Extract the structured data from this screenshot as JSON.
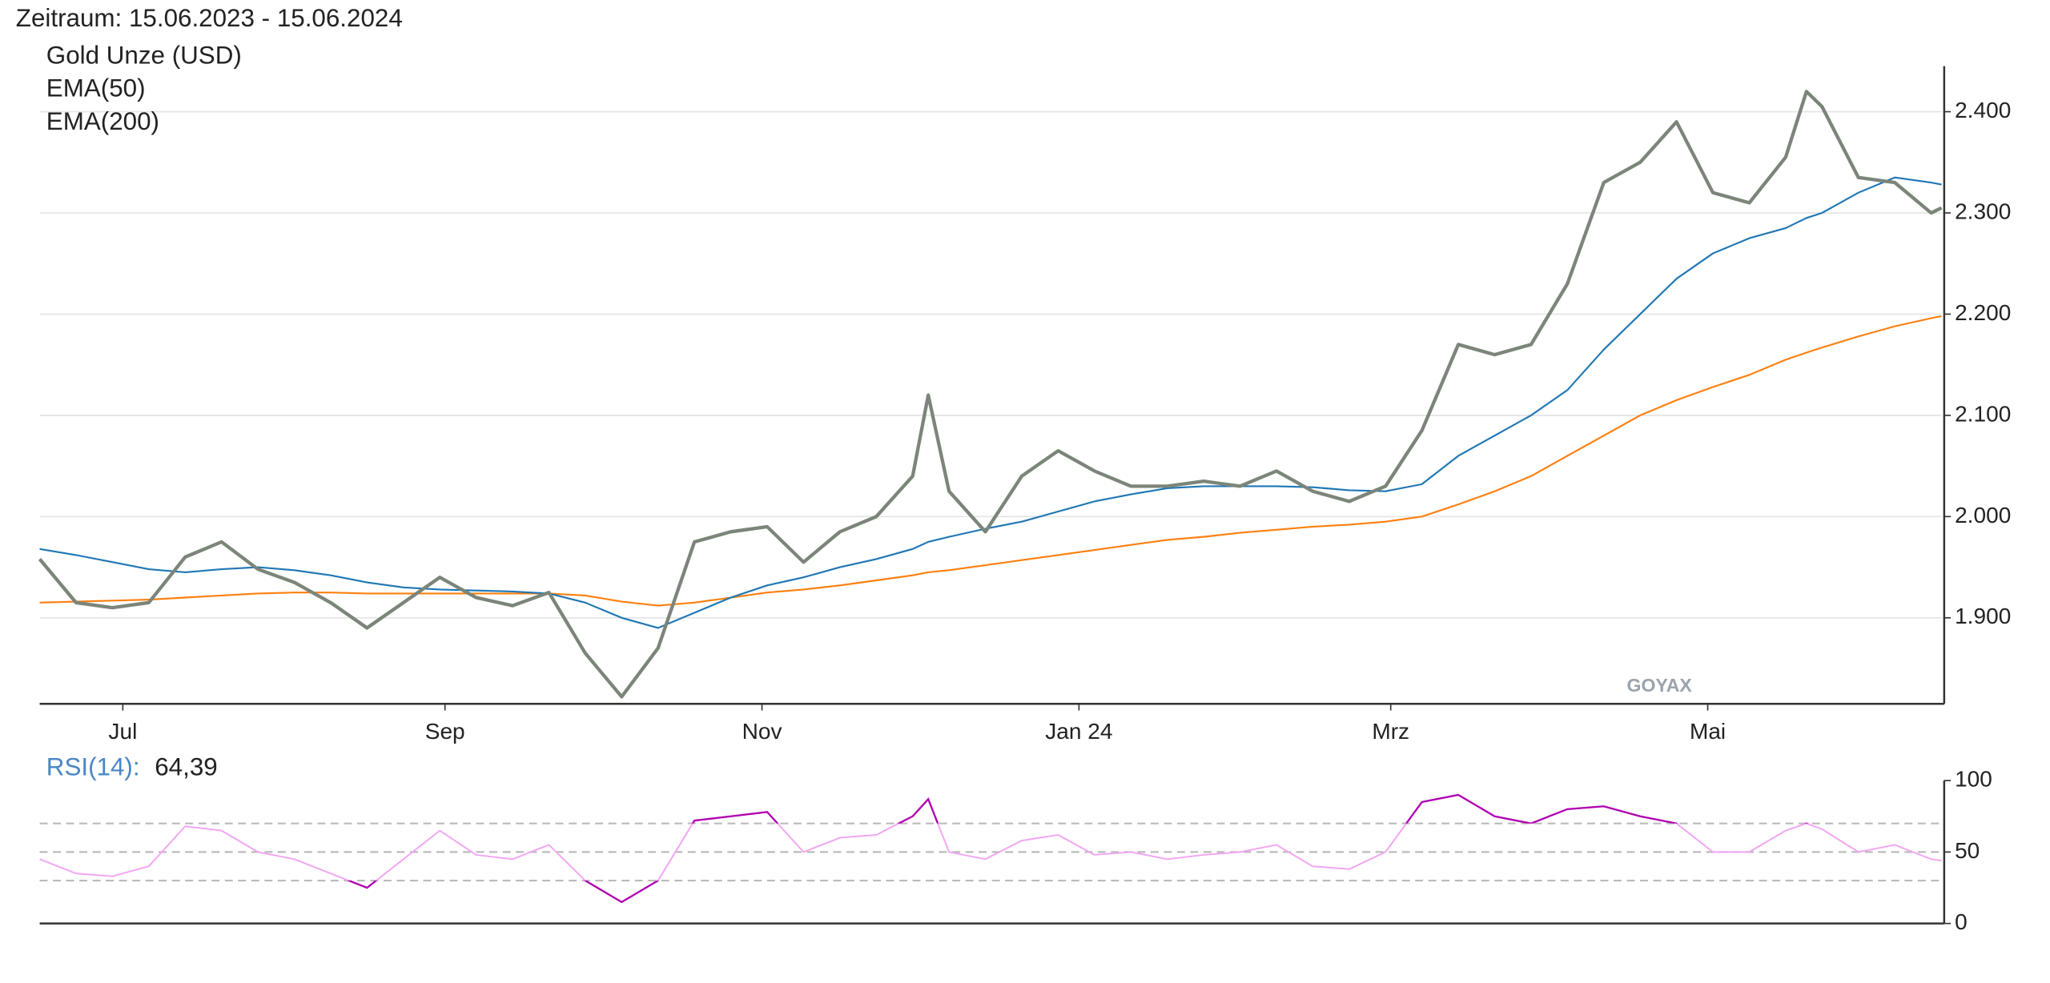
{
  "chart_data": [
    {
      "type": "line",
      "title": "Zeitraum: 15.06.2023 - 15.06.2024",
      "watermark": "GOYAX",
      "x": [
        0,
        7,
        14,
        21,
        28,
        35,
        42,
        49,
        56,
        63,
        70,
        77,
        84,
        91,
        98,
        105,
        112,
        119,
        126,
        133,
        140,
        147,
        154,
        161,
        168,
        171,
        175,
        182,
        189,
        196,
        203,
        210,
        217,
        224,
        231,
        238,
        245,
        252,
        259,
        266,
        273,
        280,
        287,
        294,
        301,
        308,
        315,
        322,
        329,
        336,
        340,
        343,
        350,
        357,
        364,
        366
      ],
      "xlim": [
        0,
        366
      ],
      "xticks": [
        {
          "value": 16,
          "label": "Jul"
        },
        {
          "value": 78,
          "label": "Sep"
        },
        {
          "value": 139,
          "label": "Nov"
        },
        {
          "value": 200,
          "label": "Jan 24"
        },
        {
          "value": 260,
          "label": "Mrz"
        },
        {
          "value": 321,
          "label": "Mai"
        }
      ],
      "ylim": [
        1815,
        2445
      ],
      "yticks": [
        {
          "value": 1900,
          "label": "1.900"
        },
        {
          "value": 2000,
          "label": "2.000"
        },
        {
          "value": 2100,
          "label": "2.100"
        },
        {
          "value": 2200,
          "label": "2.200"
        },
        {
          "value": 2300,
          "label": "2.300"
        },
        {
          "value": 2400,
          "label": "2.400"
        }
      ],
      "grid": true,
      "series": [
        {
          "name": "Gold Unze (USD)",
          "color": "#7b8579",
          "values": [
            1958,
            1915,
            1910,
            1915,
            1960,
            1975,
            1948,
            1935,
            1915,
            1890,
            1915,
            1940,
            1920,
            1912,
            1925,
            1865,
            1822,
            1870,
            1975,
            1985,
            1990,
            1955,
            1985,
            2000,
            2040,
            2120,
            2025,
            1985,
            2040,
            2065,
            2045,
            2030,
            2030,
            2035,
            2030,
            2045,
            2025,
            2015,
            2030,
            2085,
            2170,
            2160,
            2170,
            2230,
            2330,
            2350,
            2390,
            2320,
            2310,
            2355,
            2420,
            2405,
            2335,
            2330,
            2300,
            2305
          ]
        },
        {
          "name": "EMA(50)",
          "color": "#1f77b4",
          "values": [
            1968,
            1962,
            1955,
            1948,
            1945,
            1948,
            1950,
            1947,
            1942,
            1935,
            1930,
            1928,
            1927,
            1926,
            1924,
            1915,
            1900,
            1890,
            1905,
            1920,
            1932,
            1940,
            1950,
            1958,
            1968,
            1975,
            1980,
            1988,
            1995,
            2005,
            2015,
            2022,
            2028,
            2030,
            2030,
            2030,
            2029,
            2026,
            2025,
            2032,
            2060,
            2080,
            2100,
            2125,
            2165,
            2200,
            2235,
            2260,
            2275,
            2285,
            2295,
            2300,
            2320,
            2335,
            2330,
            2328
          ]
        },
        {
          "name": "EMA(200)",
          "color": "#ff7f0e",
          "values": [
            1915,
            1916,
            1917,
            1918,
            1920,
            1922,
            1924,
            1925,
            1925,
            1924,
            1924,
            1924,
            1924,
            1924,
            1924,
            1922,
            1916,
            1912,
            1915,
            1920,
            1925,
            1928,
            1932,
            1937,
            1942,
            1945,
            1947,
            1952,
            1957,
            1962,
            1967,
            1972,
            1977,
            1980,
            1984,
            1987,
            1990,
            1992,
            1995,
            2000,
            2012,
            2025,
            2040,
            2060,
            2080,
            2100,
            2115,
            2128,
            2140,
            2155,
            2162,
            2167,
            2178,
            2188,
            2196,
            2198
          ]
        }
      ]
    },
    {
      "type": "line",
      "label": "RSI(14):",
      "current": "64,39",
      "x": [
        0,
        7,
        14,
        21,
        28,
        35,
        42,
        49,
        56,
        63,
        70,
        77,
        84,
        91,
        98,
        105,
        112,
        119,
        126,
        133,
        140,
        147,
        154,
        161,
        168,
        171,
        175,
        182,
        189,
        196,
        203,
        210,
        217,
        224,
        231,
        238,
        245,
        252,
        259,
        266,
        273,
        280,
        287,
        294,
        301,
        308,
        315,
        322,
        329,
        336,
        340,
        343,
        350,
        357,
        364,
        366
      ],
      "xlim": [
        0,
        366
      ],
      "ylim": [
        0,
        100
      ],
      "yticks": [
        0,
        50,
        100
      ],
      "levels": [
        30,
        50,
        70
      ],
      "series": [
        {
          "name": "RSI(14)",
          "color": "#f2a6f2",
          "extreme_color": "#b000b0",
          "values": [
            45,
            35,
            33,
            40,
            68,
            65,
            50,
            45,
            35,
            25,
            45,
            65,
            48,
            45,
            55,
            30,
            15,
            30,
            72,
            75,
            78,
            50,
            60,
            62,
            75,
            87,
            50,
            45,
            58,
            62,
            48,
            50,
            45,
            48,
            50,
            55,
            40,
            38,
            50,
            85,
            90,
            75,
            70,
            80,
            82,
            75,
            70,
            50,
            50,
            65,
            70,
            66,
            50,
            55,
            45,
            44
          ]
        }
      ]
    }
  ]
}
